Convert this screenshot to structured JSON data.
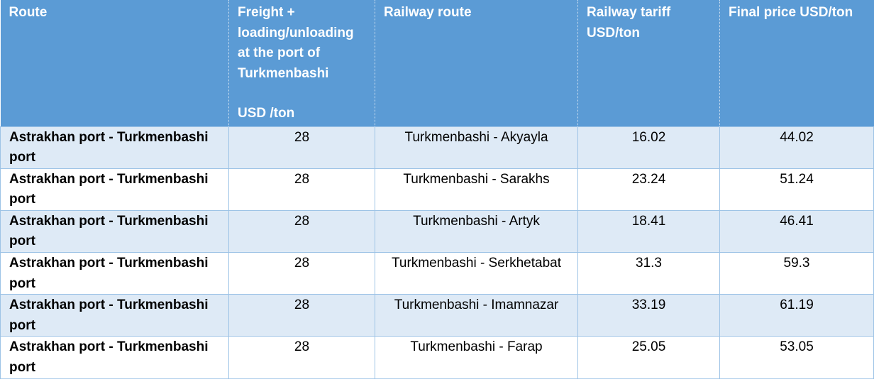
{
  "headers": {
    "route": "Route",
    "freight_line1": "Freight + loading/unloading at the port of Turkmenbashi",
    "freight_line2": "USD /ton",
    "railway_route": "Railway route",
    "railway_tariff": "Railway tariff USD/ton",
    "final_price": "Final price  USD/ton"
  },
  "rows": [
    {
      "route": "Astrakhan port - Turkmenbashi port",
      "freight": "28",
      "railway_route": "Turkmenbashi  - Akyayla",
      "tariff": "16.02",
      "final": "44.02"
    },
    {
      "route": "Astrakhan port - Turkmenbashi port",
      "freight": "28",
      "railway_route": "Turkmenbashi   - Sarakhs",
      "tariff": "23.24",
      "final": "51.24"
    },
    {
      "route": "Astrakhan port - Turkmenbashi port",
      "freight": "28",
      "railway_route": "Turkmenbashi - Artyk",
      "tariff": "18.41",
      "final": "46.41"
    },
    {
      "route": "Astrakhan port - Turkmenbashi port",
      "freight": "28",
      "railway_route": "Turkmenbashi - Serkhetabat",
      "tariff": "31.3",
      "final": "59.3"
    },
    {
      "route": "Astrakhan port - Turkmenbashi port",
      "freight": "28",
      "railway_route": "Turkmenbashi  - Imamnazar",
      "tariff": "33.19",
      "final": "61.19"
    },
    {
      "route": "Astrakhan port - Turkmenbashi port",
      "freight": "28",
      "railway_route": "Turkmenbashi - Farap",
      "tariff": "25.05",
      "final": "53.05"
    }
  ]
}
